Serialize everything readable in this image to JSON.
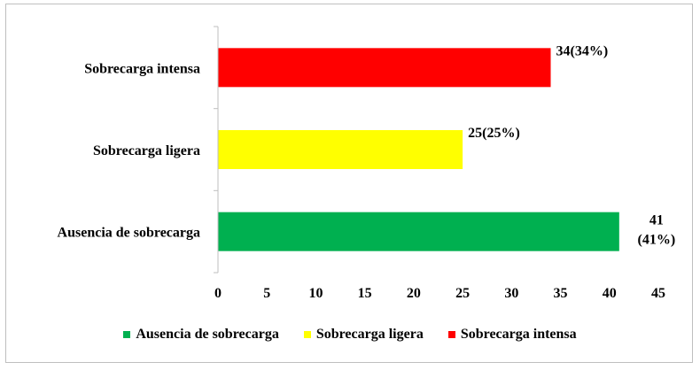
{
  "chart_data": {
    "type": "bar",
    "orientation": "horizontal",
    "categories": [
      "Ausencia de sobrecarga",
      "Sobrecarga ligera",
      "Sobrecarga intensa"
    ],
    "values": [
      41,
      25,
      34
    ],
    "data_labels": [
      "41\n(41%)",
      "25(25%)",
      "34(34%)"
    ],
    "colors": [
      "#00b050",
      "#ffff00",
      "#ff0000"
    ],
    "xlim": [
      0,
      45
    ],
    "xticks": [
      "0",
      "5",
      "10",
      "15",
      "20",
      "25",
      "30",
      "35",
      "40",
      "45"
    ],
    "grid": false,
    "legend": {
      "position": "bottom",
      "entries": [
        "Ausencia de sobrecarga",
        "Sobrecarga ligera",
        "Sobrecarga intensa"
      ]
    }
  }
}
